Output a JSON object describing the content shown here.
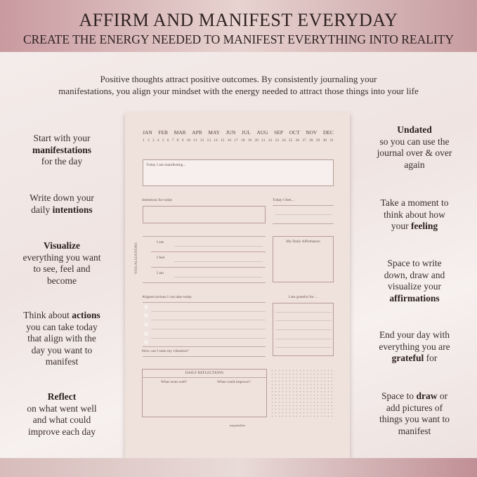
{
  "header": {
    "title": "AFFIRM AND MANIFEST EVERYDAY",
    "subtitle": "CREATE THE ENERGY NEEDED TO MANIFEST EVERYTHING INTO REALITY"
  },
  "intro": {
    "line1": "Positive thoughts attract positive outcomes. By consistently journaling your",
    "line2": "manifestations, you align your mindset with the energy needed to attract those things into your life"
  },
  "left": [
    {
      "lines": [
        [
          {
            "t": "Start with your"
          }
        ],
        [
          {
            "t": "manifestations",
            "b": true
          }
        ],
        [
          {
            "t": "for the day"
          }
        ]
      ]
    },
    {
      "lines": [
        [
          {
            "t": "Write down your"
          }
        ],
        [
          {
            "t": "daily "
          },
          {
            "t": "intentions",
            "b": true
          }
        ]
      ]
    },
    {
      "lines": [
        [
          {
            "t": "Visualize",
            "b": true
          }
        ],
        [
          {
            "t": "everything you want"
          }
        ],
        [
          {
            "t": "to see, feel and"
          }
        ],
        [
          {
            "t": "become"
          }
        ]
      ]
    },
    {
      "lines": [
        [
          {
            "t": "Think about "
          },
          {
            "t": "actions",
            "b": true
          }
        ],
        [
          {
            "t": "you can take today"
          }
        ],
        [
          {
            "t": "that align with the"
          }
        ],
        [
          {
            "t": "day you want to"
          }
        ],
        [
          {
            "t": "manifest"
          }
        ]
      ]
    },
    {
      "lines": [
        [
          {
            "t": "Reflect",
            "b": true
          }
        ],
        [
          {
            "t": "on what went well"
          }
        ],
        [
          {
            "t": "and what could"
          }
        ],
        [
          {
            "t": "improve each day"
          }
        ]
      ]
    }
  ],
  "right": [
    {
      "lines": [
        [
          {
            "t": "Undated",
            "b": true
          }
        ],
        [
          {
            "t": "so you can use the"
          }
        ],
        [
          {
            "t": "journal over & over"
          }
        ],
        [
          {
            "t": "again"
          }
        ]
      ]
    },
    {
      "lines": [
        [
          {
            "t": "Take a moment to"
          }
        ],
        [
          {
            "t": "think about how"
          }
        ],
        [
          {
            "t": "your "
          },
          {
            "t": "feeling",
            "b": true
          }
        ]
      ]
    },
    {
      "lines": [
        [
          {
            "t": "Space to write"
          }
        ],
        [
          {
            "t": "down, draw and"
          }
        ],
        [
          {
            "t": "visualize your"
          }
        ],
        [
          {
            "t": "affirmations",
            "b": true
          }
        ]
      ]
    },
    {
      "lines": [
        [
          {
            "t": "End your day with"
          }
        ],
        [
          {
            "t": "everything you are"
          }
        ],
        [
          {
            "t": "grateful",
            "b": true
          },
          {
            "t": " for"
          }
        ]
      ]
    },
    {
      "lines": [
        [
          {
            "t": "Space to "
          },
          {
            "t": "draw",
            "b": true
          },
          {
            "t": " or"
          }
        ],
        [
          {
            "t": "add pictures of"
          }
        ],
        [
          {
            "t": "things you want to"
          }
        ],
        [
          {
            "t": "manifest"
          }
        ]
      ]
    }
  ],
  "paper": {
    "months": [
      "JAN",
      "FEB",
      "MAR",
      "APR",
      "MAY",
      "JUN",
      "JUL",
      "AUG",
      "SEP",
      "OCT",
      "NOV",
      "DEC"
    ],
    "days": [
      "1",
      "2",
      "3",
      "4",
      "5",
      "6",
      "7",
      "8",
      "9",
      "10",
      "11",
      "12",
      "13",
      "14",
      "15",
      "16",
      "17",
      "18",
      "19",
      "20",
      "21",
      "22",
      "23",
      "24",
      "25",
      "26",
      "27",
      "28",
      "29",
      "30",
      "31"
    ],
    "manifesting": "Today I am manifesting...",
    "intentions": "Intentions for today",
    "feel": "Today I feel...",
    "visualizations": "VISUALIZATIONS",
    "i_see": "I see",
    "i_feel": "I feel",
    "i_am": "I am",
    "affirmation": "My Daily Affirmation",
    "actions": "Aligned actions I can take today",
    "vibration": "How can I raise my vibration?",
    "grateful": "I am grateful for ...",
    "reflections": "DAILY REFLECTIONS",
    "went_well": "What went well?",
    "improve": "What could improve?",
    "brand": "templatables"
  }
}
